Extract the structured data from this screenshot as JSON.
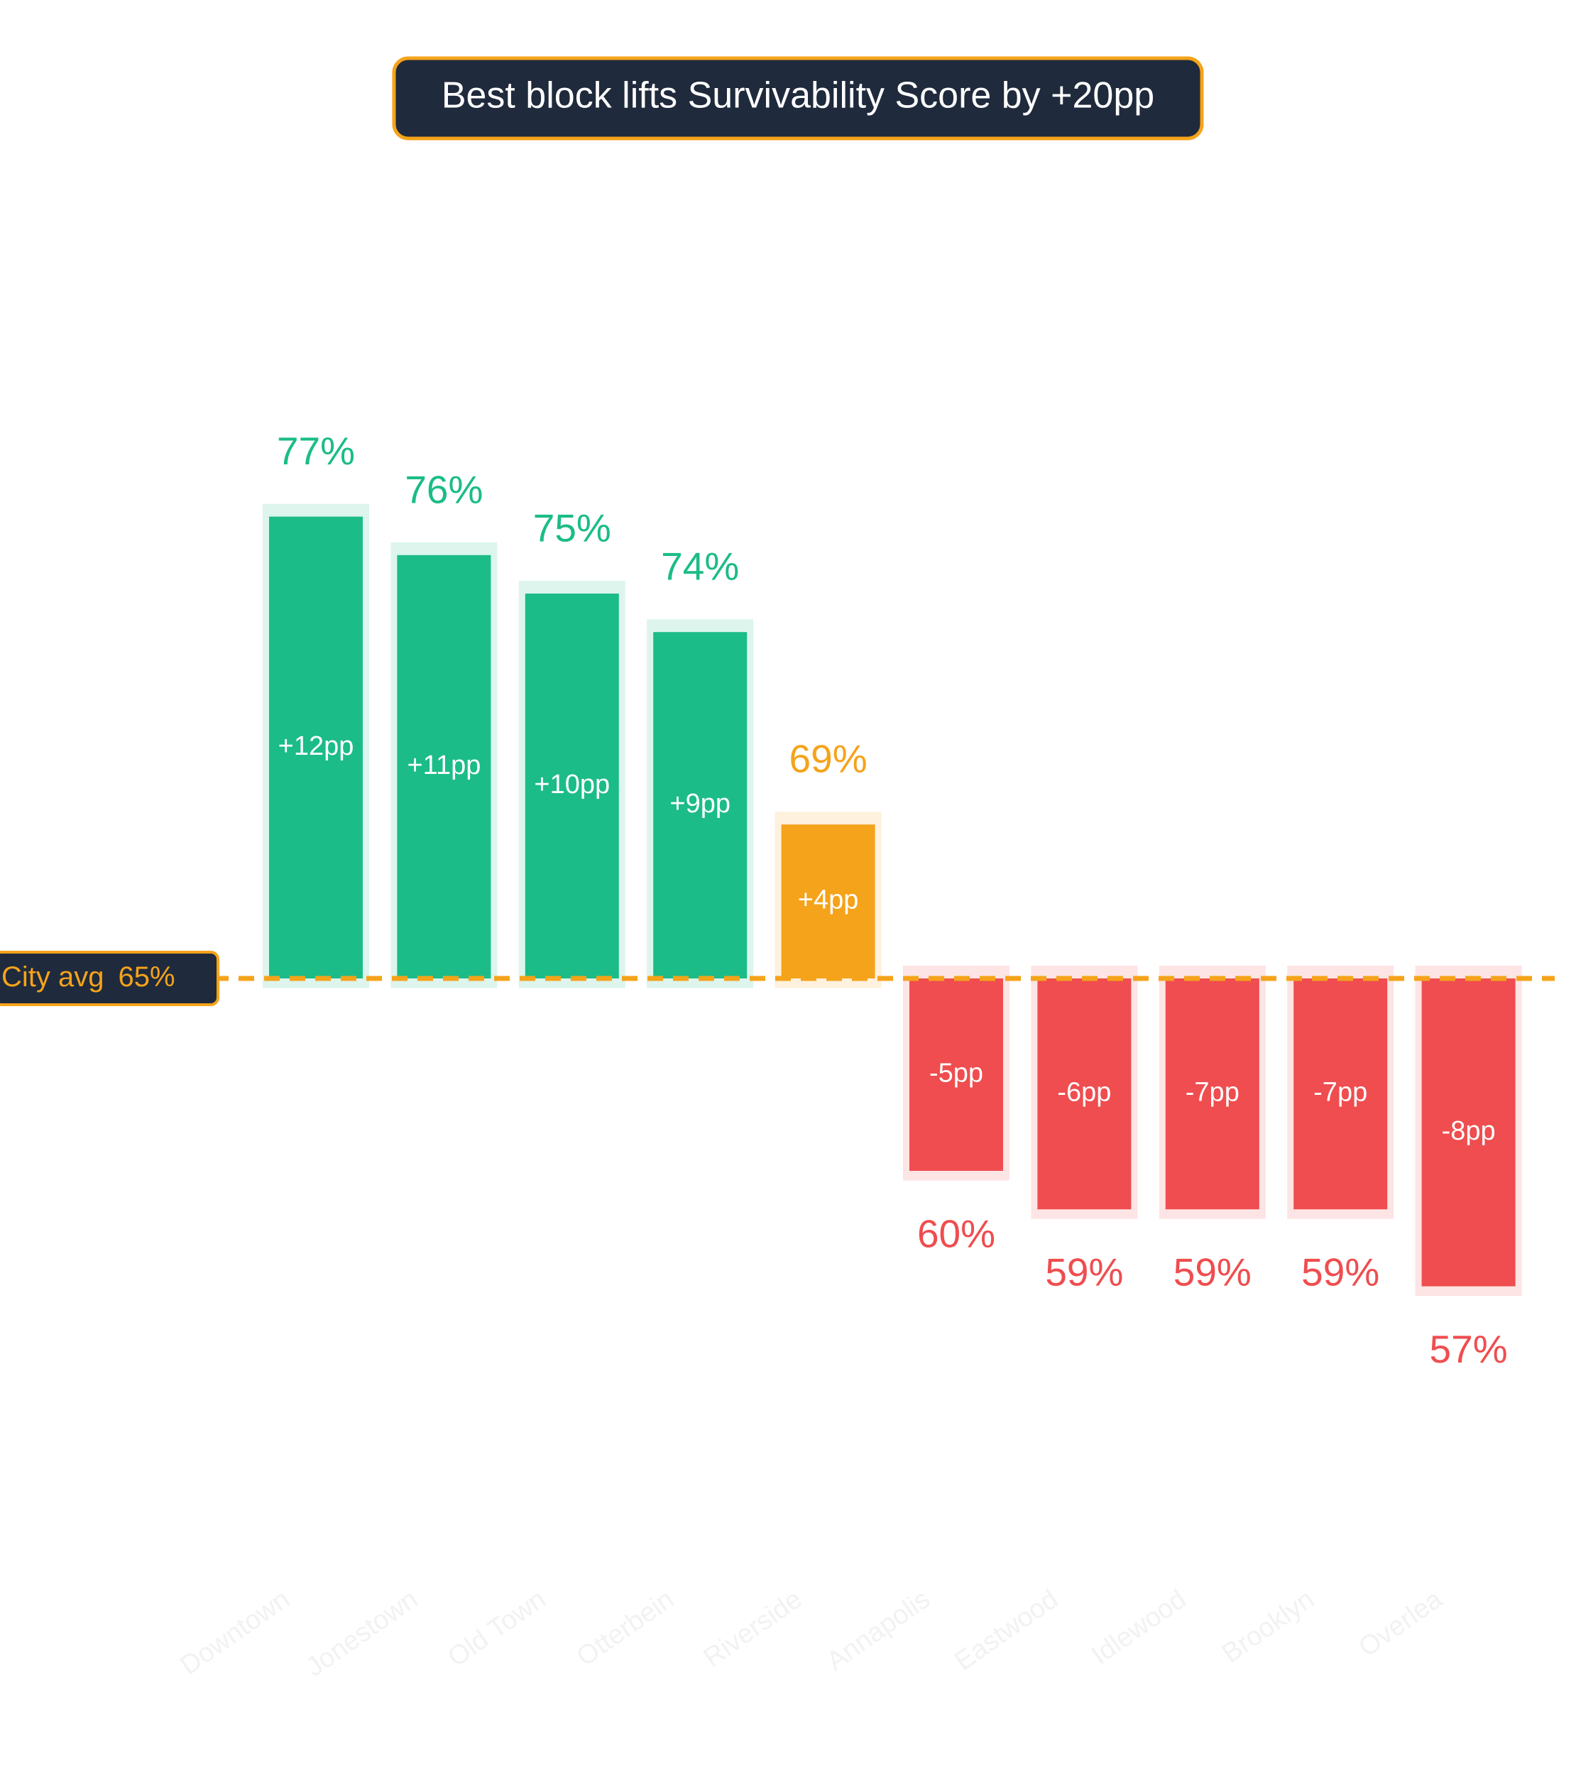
{
  "chart_data": {
    "type": "bar",
    "title": "Best block lifts Survivability Score by +20pp",
    "categories": [
      "Downtown",
      "Jonestown",
      "Old Town",
      "Otterbein",
      "Riverside",
      "Annapolis",
      "Eastwood",
      "Idlewood",
      "Brooklyn",
      "Overlea"
    ],
    "values": [
      77,
      76,
      75,
      74,
      69,
      60,
      59,
      59,
      59,
      57
    ],
    "value_labels": [
      "77%",
      "76%",
      "75%",
      "74%",
      "69%",
      "60%",
      "59%",
      "59%",
      "59%",
      "57%"
    ],
    "inner_labels": [
      "+12pp",
      "+11pp",
      "+10pp",
      "+9pp",
      "+4pp",
      "-5pp",
      "-6pp",
      "-7pp",
      "-7pp",
      "-8pp"
    ],
    "colors": [
      "#1bbc87",
      "#1bbc87",
      "#1bbc87",
      "#1bbc87",
      "#f5a31a",
      "#ef4d4f",
      "#ef4d4f",
      "#ef4d4f",
      "#ef4d4f",
      "#ef4d4f"
    ],
    "reference": {
      "label": "City avg",
      "value": 65,
      "value_label": "65%",
      "color": "#f5a31a"
    }
  }
}
